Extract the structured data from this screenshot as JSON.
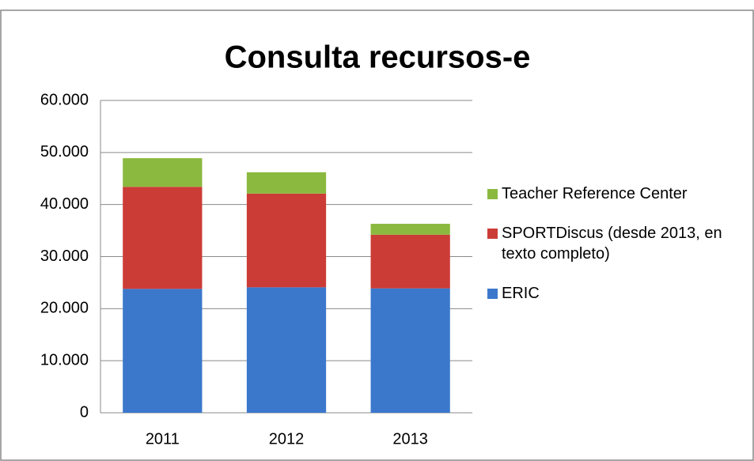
{
  "chart_data": {
    "type": "bar",
    "stacked": true,
    "title": "Consulta recursos-e",
    "categories": [
      "2011",
      "2012",
      "2013"
    ],
    "series": [
      {
        "name": "ERIC",
        "color": "#3b78cc",
        "values": [
          23800,
          24100,
          23900
        ]
      },
      {
        "name": "SPORTDiscus (desde 2013, en texto completo)",
        "color": "#cc3c36",
        "values": [
          19600,
          18000,
          10300
        ]
      },
      {
        "name": "Teacher Reference Center",
        "color": "#8bb93f",
        "values": [
          5500,
          4100,
          2100
        ]
      }
    ],
    "ylim": [
      0,
      60000
    ],
    "yticks": [
      0,
      {
        "value": 10000,
        "label": "10.000"
      },
      {
        "value": 20000,
        "label": "20.000"
      },
      {
        "value": 30000,
        "label": "30.000"
      },
      {
        "value": 40000,
        "label": "40.000"
      },
      {
        "value": 50000,
        "label": "50.000"
      },
      {
        "value": 60000,
        "label": "60.000"
      }
    ],
    "grid": true,
    "legend": "right"
  }
}
